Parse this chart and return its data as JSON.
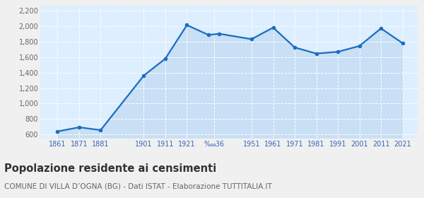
{
  "years": [
    1861,
    1871,
    1881,
    1901,
    1911,
    1921,
    1931,
    1936,
    1951,
    1961,
    1971,
    1981,
    1991,
    2001,
    2011,
    2021
  ],
  "population": [
    640,
    693,
    657,
    1361,
    1580,
    2013,
    1886,
    1901,
    1831,
    1981,
    1724,
    1645,
    1668,
    1743,
    1970,
    1779
  ],
  "x_tick_positions": [
    1861,
    1871,
    1881,
    1901,
    1911,
    1921,
    1933.5,
    1951,
    1961,
    1971,
    1981,
    1991,
    2001,
    2011,
    2021
  ],
  "x_tick_labels": [
    "1861",
    "1871",
    "1881",
    "1901",
    "1911",
    "1921",
    "‱36",
    "1951",
    "1961",
    "1971",
    "1981",
    "1991",
    "2001",
    "2011",
    "2021"
  ],
  "ylim": [
    560,
    2260
  ],
  "yticks": [
    600,
    800,
    1000,
    1200,
    1400,
    1600,
    1800,
    2000,
    2200
  ],
  "xlim": [
    1853,
    2028
  ],
  "line_color": "#1a6ec0",
  "fill_color": "#c8dff5",
  "marker_color": "#1a6ec0",
  "bg_color": "#ddeeff",
  "fig_color": "#f0f0f0",
  "grid_color": "#ffffff",
  "x_label_color": "#3366bb",
  "y_label_color": "#666666",
  "title": "Popolazione residente ai censimenti",
  "subtitle": "COMUNE DI VILLA D’OGNA (BG) - Dati ISTAT - Elaborazione TUTTITALIA.IT",
  "title_fontsize": 10.5,
  "subtitle_fontsize": 7.5
}
